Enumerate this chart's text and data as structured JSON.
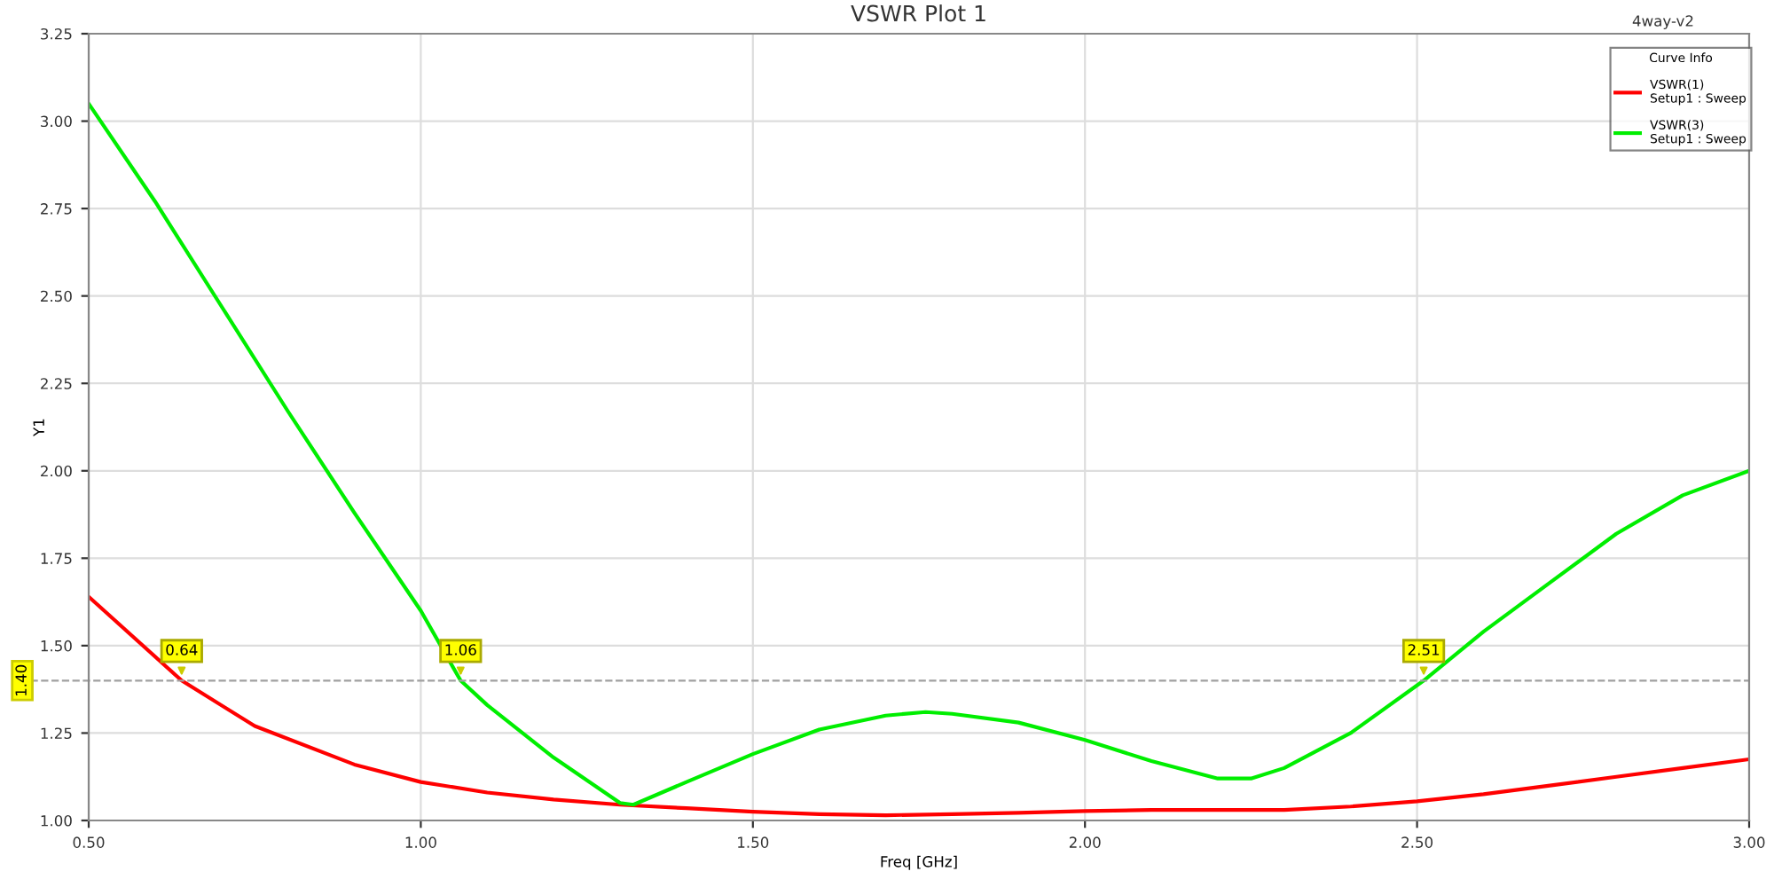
{
  "chart_data": {
    "type": "line",
    "title": "VSWR Plot 1",
    "subtitle": "4way-v2",
    "xlabel": "Freq [GHz]",
    "ylabel": "Y1",
    "legend_title": "Curve Info",
    "xlim": [
      0.5,
      3.0
    ],
    "ylim": [
      1.0,
      3.25
    ],
    "xticks": [
      {
        "value": 0.5,
        "label": "0.50"
      },
      {
        "value": 1.0,
        "label": "1.00"
      },
      {
        "value": 1.5,
        "label": "1.50"
      },
      {
        "value": 2.0,
        "label": "2.00"
      },
      {
        "value": 2.5,
        "label": "2.50"
      },
      {
        "value": 3.0,
        "label": "3.00"
      }
    ],
    "yticks": [
      {
        "value": 1.0,
        "label": "1.00"
      },
      {
        "value": 1.25,
        "label": "1.25"
      },
      {
        "value": 1.5,
        "label": "1.50"
      },
      {
        "value": 1.75,
        "label": "1.75"
      },
      {
        "value": 2.0,
        "label": "2.00"
      },
      {
        "value": 2.25,
        "label": "2.25"
      },
      {
        "value": 2.5,
        "label": "2.50"
      },
      {
        "value": 2.75,
        "label": "2.75"
      },
      {
        "value": 3.0,
        "label": "3.00"
      },
      {
        "value": 3.25,
        "label": "3.25"
      }
    ],
    "grid": true,
    "legend": "top right",
    "line_style": "solid",
    "marker": "none",
    "ref_lines": [
      {
        "axis": "y",
        "value": 1.4,
        "label": "1.40",
        "color": "#a0a0a0",
        "line_style": "dashed"
      }
    ],
    "annotations": [
      {
        "text": "0.64",
        "x": 0.64,
        "y": 1.4
      },
      {
        "text": "1.06",
        "x": 1.06,
        "y": 1.4
      },
      {
        "text": "2.51",
        "x": 2.51,
        "y": 1.4
      }
    ],
    "series": [
      {
        "name": "VSWR(1)\nSetup1 : Sweep",
        "color": "#ff0000",
        "x": [
          0.5,
          0.64,
          0.75,
          0.9,
          1.0,
          1.1,
          1.2,
          1.3,
          1.4,
          1.5,
          1.6,
          1.7,
          1.8,
          1.9,
          2.0,
          2.1,
          2.2,
          2.3,
          2.4,
          2.5,
          2.6,
          2.7,
          2.8,
          2.9,
          3.0
        ],
        "values": [
          1.64,
          1.4,
          1.27,
          1.16,
          1.11,
          1.08,
          1.06,
          1.045,
          1.035,
          1.025,
          1.018,
          1.015,
          1.018,
          1.022,
          1.027,
          1.03,
          1.03,
          1.03,
          1.04,
          1.055,
          1.075,
          1.1,
          1.125,
          1.15,
          1.175
        ]
      },
      {
        "name": "VSWR(3)\nSetup1 : Sweep",
        "color": "#00ee00",
        "x": [
          0.5,
          0.6,
          0.7,
          0.8,
          0.9,
          1.0,
          1.06,
          1.1,
          1.2,
          1.3,
          1.32,
          1.4,
          1.5,
          1.6,
          1.7,
          1.76,
          1.8,
          1.9,
          2.0,
          2.1,
          2.2,
          2.25,
          2.3,
          2.4,
          2.51,
          2.6,
          2.7,
          2.8,
          2.9,
          3.0
        ],
        "values": [
          3.05,
          2.77,
          2.47,
          2.17,
          1.88,
          1.6,
          1.4,
          1.33,
          1.18,
          1.05,
          1.045,
          1.11,
          1.19,
          1.26,
          1.3,
          1.31,
          1.305,
          1.28,
          1.23,
          1.17,
          1.12,
          1.12,
          1.15,
          1.25,
          1.4,
          1.54,
          1.68,
          1.82,
          1.93,
          2.0
        ]
      }
    ]
  }
}
